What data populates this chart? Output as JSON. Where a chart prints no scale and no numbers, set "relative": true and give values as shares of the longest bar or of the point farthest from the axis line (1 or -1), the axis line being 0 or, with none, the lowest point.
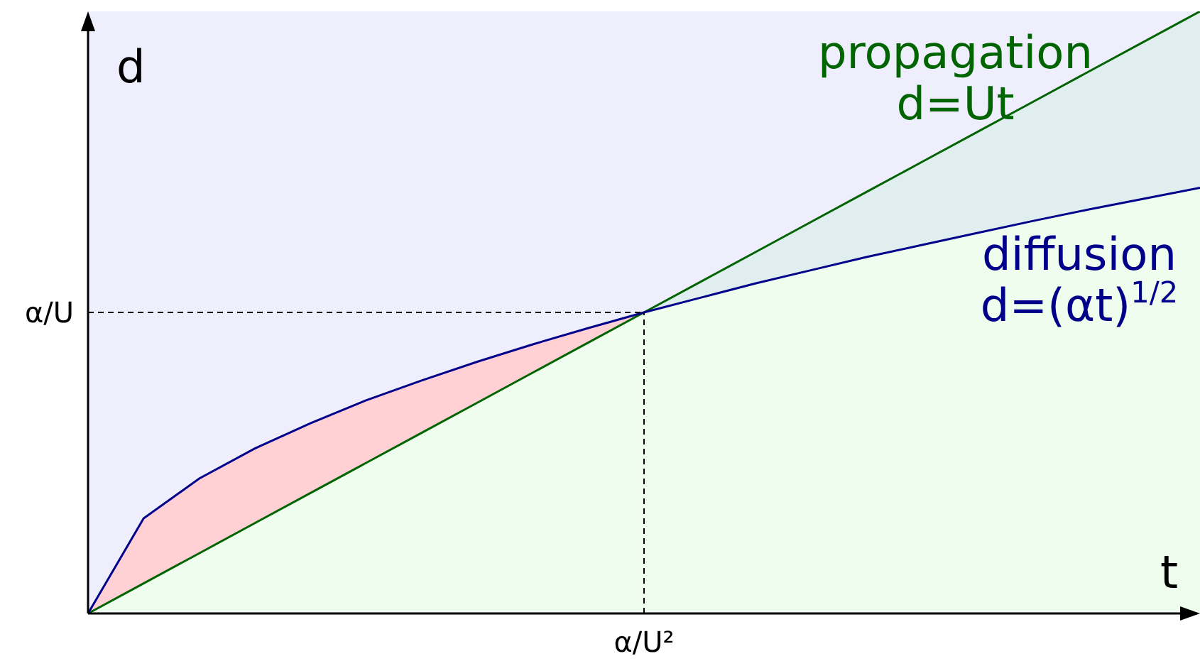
{
  "chart_data": {
    "type": "line",
    "relative": true,
    "xlabel": "t",
    "ylabel": "d",
    "legend": false,
    "marker": "none",
    "line_style": "solid",
    "categories": [
      null,
      null,
      null,
      null,
      null,
      null,
      null,
      null,
      null,
      null,
      null,
      null,
      null,
      null,
      null,
      null,
      null,
      null,
      null,
      null,
      null
    ],
    "series": [
      {
        "name": "propagation",
        "color": "#006400",
        "values": [
          0,
          0.05,
          0.1,
          0.15,
          0.2,
          0.25,
          0.3,
          0.35,
          0.4,
          0.45,
          0.5,
          0.55,
          0.6,
          0.65,
          0.7,
          0.75,
          0.8,
          0.85,
          0.9,
          0.95,
          1
        ]
      },
      {
        "name": "diffusion",
        "color": "#00008b",
        "values": [
          0,
          0.158,
          0.224,
          0.274,
          0.316,
          0.354,
          0.387,
          0.418,
          0.447,
          0.474,
          0.5,
          0.524,
          0.548,
          0.57,
          0.592,
          0.612,
          0.632,
          0.652,
          0.671,
          0.689,
          0.707
        ]
      }
    ],
    "annotations": [
      "d=Ut",
      "d=(αt)$^{1/2}$"
    ],
    "ref_lines": [
      {
        "axis": "y",
        "value": 0.5,
        "label": "α/U",
        "line_style": "dashed",
        "color": "#000000"
      },
      {
        "axis": "x",
        "label": "α/U²",
        "line_style": "dashed",
        "color": "#000000"
      }
    ]
  }
}
